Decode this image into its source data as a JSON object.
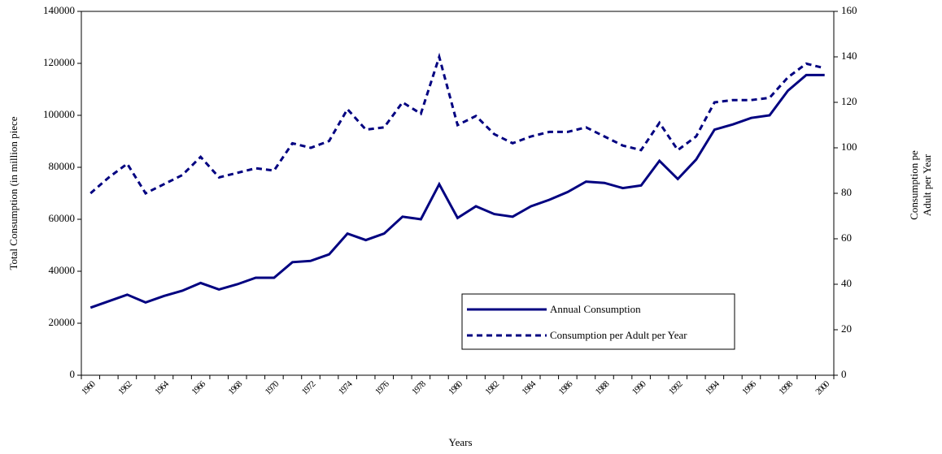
{
  "chart_data": {
    "type": "line",
    "x_label": "Years",
    "y_label": "Total Consumption (in million piece",
    "y2_label": [
      "Consumption pe",
      "Adult per Year"
    ],
    "categories": [
      "1960",
      null,
      "1962",
      null,
      "1964",
      null,
      "1966",
      null,
      "1968",
      null,
      "1970",
      null,
      "1972",
      null,
      "1974",
      null,
      "1976",
      null,
      "1978",
      null,
      "1980",
      null,
      "1982",
      null,
      "1984",
      null,
      "1986",
      null,
      "1988",
      null,
      "1990",
      null,
      "1992",
      null,
      "1994",
      null,
      "1996",
      null,
      "1998",
      null,
      "2000"
    ],
    "series": [
      {
        "name": "Annual Consumption",
        "color": "#000080",
        "dash": false,
        "values": [
          26000,
          28500,
          31000,
          28000,
          30500,
          32500,
          35500,
          33000,
          35000,
          37500,
          37500,
          43500,
          44000,
          46500,
          54500,
          52000,
          54500,
          61000,
          60000,
          73500,
          60500,
          65000,
          62000,
          61000,
          65000,
          67500,
          70500,
          74500,
          74000,
          72000,
          73000,
          82500,
          75500,
          83000,
          94500,
          96500,
          99000,
          100000,
          109500,
          115500,
          115500
        ]
      },
      {
        "name": "Consumption per Adult per Year",
        "color": "#000080",
        "dash": true,
        "axis": "y2",
        "values": [
          80,
          87,
          93,
          80,
          84,
          88,
          96,
          87,
          89,
          91,
          90,
          102,
          100,
          103,
          117,
          108,
          109,
          120,
          115,
          140,
          110,
          114,
          106,
          102,
          105,
          107,
          107,
          109,
          105,
          101,
          99,
          111,
          99,
          105,
          120,
          121,
          121,
          122,
          131,
          137,
          135
        ]
      }
    ],
    "ylim": [
      0,
      140000
    ],
    "yticks": [
      0,
      20000,
      40000,
      60000,
      80000,
      100000,
      120000,
      140000
    ],
    "y2lim": [
      0,
      160
    ],
    "y2ticks": [
      0,
      20,
      40,
      60,
      80,
      100,
      120,
      140,
      160
    ],
    "legend": "bottom-right",
    "grid": false
  }
}
